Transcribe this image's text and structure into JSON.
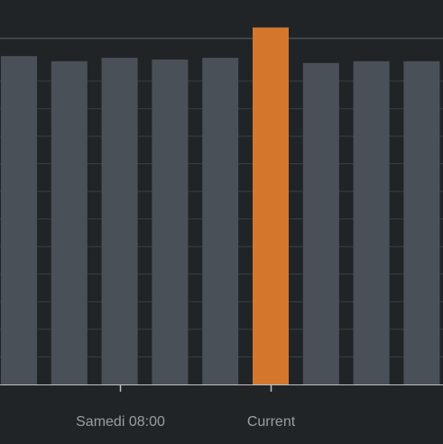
{
  "chart_data": {
    "type": "bar",
    "categories": [
      "",
      "",
      "",
      "",
      "",
      "Current",
      "",
      "",
      ""
    ],
    "values": [
      1.137,
      1.119,
      1.131,
      1.125,
      1.131,
      1.236,
      1.113,
      1.119,
      1.119
    ],
    "xticks": [
      {
        "label": "Samedi 08:00",
        "at_bar": 2
      },
      {
        "label": "Current",
        "at_bar": 5
      }
    ],
    "ylim": [
      0,
      1.3
    ],
    "highlight_index": 5,
    "colors": {
      "background": "#212427",
      "bar": "#4a5057",
      "highlight": "#d4772c",
      "grid": "#3a3e43",
      "axis": "#bfc3c7",
      "tick_label": "#9a9ea3"
    },
    "grid": true,
    "reference_line": 1.2
  }
}
